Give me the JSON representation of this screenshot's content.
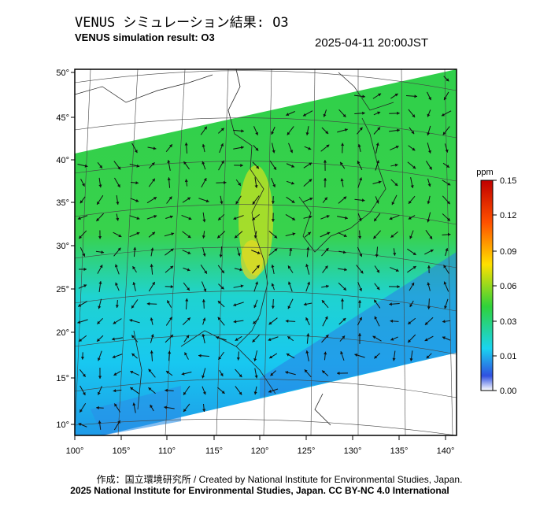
{
  "header": {
    "title_ja": "VENUS シミュレーション結果: O3",
    "title_en": "VENUS simulation result: O3",
    "timestamp": "2025-04-11 20:00JST"
  },
  "map": {
    "lat_labels": [
      "50°",
      "45°",
      "40°",
      "35°",
      "30°",
      "25°",
      "20°",
      "15°",
      "10°"
    ],
    "lon_labels": [
      "100°",
      "105°",
      "110°",
      "115°",
      "120°",
      "125°",
      "130°",
      "135°",
      "140°"
    ],
    "lat_values": [
      50,
      45,
      40,
      35,
      30,
      25,
      20,
      15,
      10
    ],
    "lon_values": [
      100,
      105,
      110,
      115,
      120,
      125,
      130,
      135,
      140
    ]
  },
  "colorbar": {
    "unit": "ppm",
    "ticks": [
      "0.15",
      "0.12",
      "0.09",
      "0.06",
      "0.03",
      "0.01",
      "0.00"
    ],
    "colors": [
      "#ffffff",
      "#3050e0",
      "#1ad4f0",
      "#2fd23a",
      "#ffe000",
      "#ff5000",
      "#c00000"
    ]
  },
  "credits": {
    "line1": "作成：国立環境研究所 / Created by National Institute for Environmental Studies, Japan.",
    "line2": "2025 National Institute for Environmental Studies, Japan. CC BY-NC 4.0 International"
  }
}
